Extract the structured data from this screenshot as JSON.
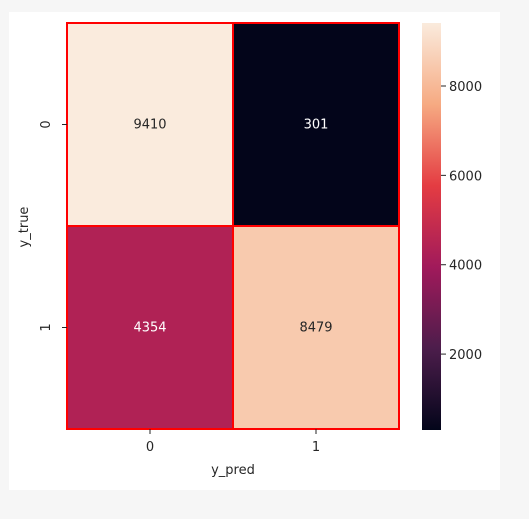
{
  "chart_data": {
    "type": "heatmap",
    "x_categories": [
      "0",
      "1"
    ],
    "y_categories": [
      "0",
      "1"
    ],
    "values": [
      [
        9410,
        301
      ],
      [
        4354,
        8479
      ]
    ],
    "cell_labels": [
      [
        "9410",
        "301"
      ],
      [
        "4354",
        "8479"
      ]
    ],
    "xlabel": "y_pred",
    "ylabel": "y_true",
    "colorbar": {
      "ticks": [
        2000,
        4000,
        6000,
        8000
      ],
      "tick_labels": [
        "2000",
        "4000",
        "6000",
        "8000"
      ],
      "range": [
        301,
        9410
      ],
      "colormap": "rocket"
    },
    "cell_border_color": "#ff0000"
  }
}
